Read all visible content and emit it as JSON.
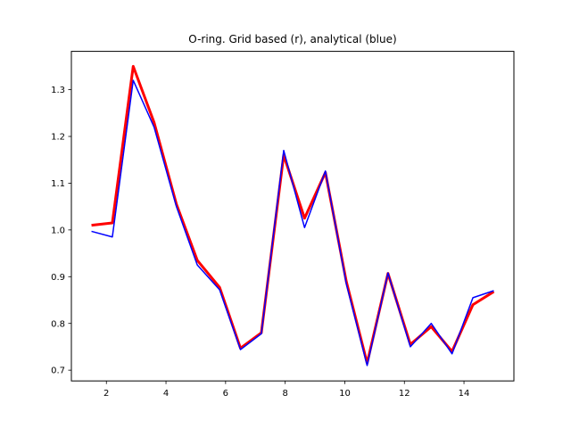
{
  "chart_data": {
    "type": "line",
    "title": "O-ring. Grid based (r), analytical (blue)",
    "xlabel": "",
    "ylabel": "",
    "xlim": [
      0.825,
      15.675
    ],
    "ylim": [
      0.677,
      1.382
    ],
    "grid": false,
    "x_ticks": [
      2,
      4,
      6,
      8,
      10,
      12,
      14
    ],
    "y_ticks": [
      0.7,
      0.8,
      0.9,
      1.0,
      1.1,
      1.2,
      1.3
    ],
    "x_tick_labels": [
      "2",
      "4",
      "6",
      "8",
      "10",
      "12",
      "14"
    ],
    "y_tick_labels": [
      "0.7",
      "0.8",
      "0.9",
      "1.0",
      "1.1",
      "1.2",
      "1.3"
    ],
    "x": [
      1.5,
      2.2,
      2.9,
      3.6,
      4.35,
      5.05,
      5.8,
      6.5,
      7.2,
      7.95,
      8.65,
      9.35,
      10.05,
      10.75,
      11.45,
      12.2,
      12.9,
      13.6,
      14.3,
      15.0
    ],
    "series": [
      {
        "color": "#ff0000",
        "line_width": 3,
        "values": [
          1.01,
          1.015,
          1.35,
          1.23,
          1.055,
          0.935,
          0.877,
          0.747,
          0.78,
          1.16,
          1.025,
          1.123,
          0.89,
          0.715,
          0.907,
          0.755,
          0.793,
          0.74,
          0.84,
          0.868
        ]
      },
      {
        "color": "#0000ff",
        "line_width": 1.5,
        "values": [
          0.997,
          0.985,
          1.32,
          1.22,
          1.05,
          0.925,
          0.872,
          0.744,
          0.778,
          1.17,
          1.005,
          1.126,
          0.885,
          0.71,
          0.908,
          0.75,
          0.8,
          0.735,
          0.855,
          0.87
        ]
      }
    ]
  }
}
